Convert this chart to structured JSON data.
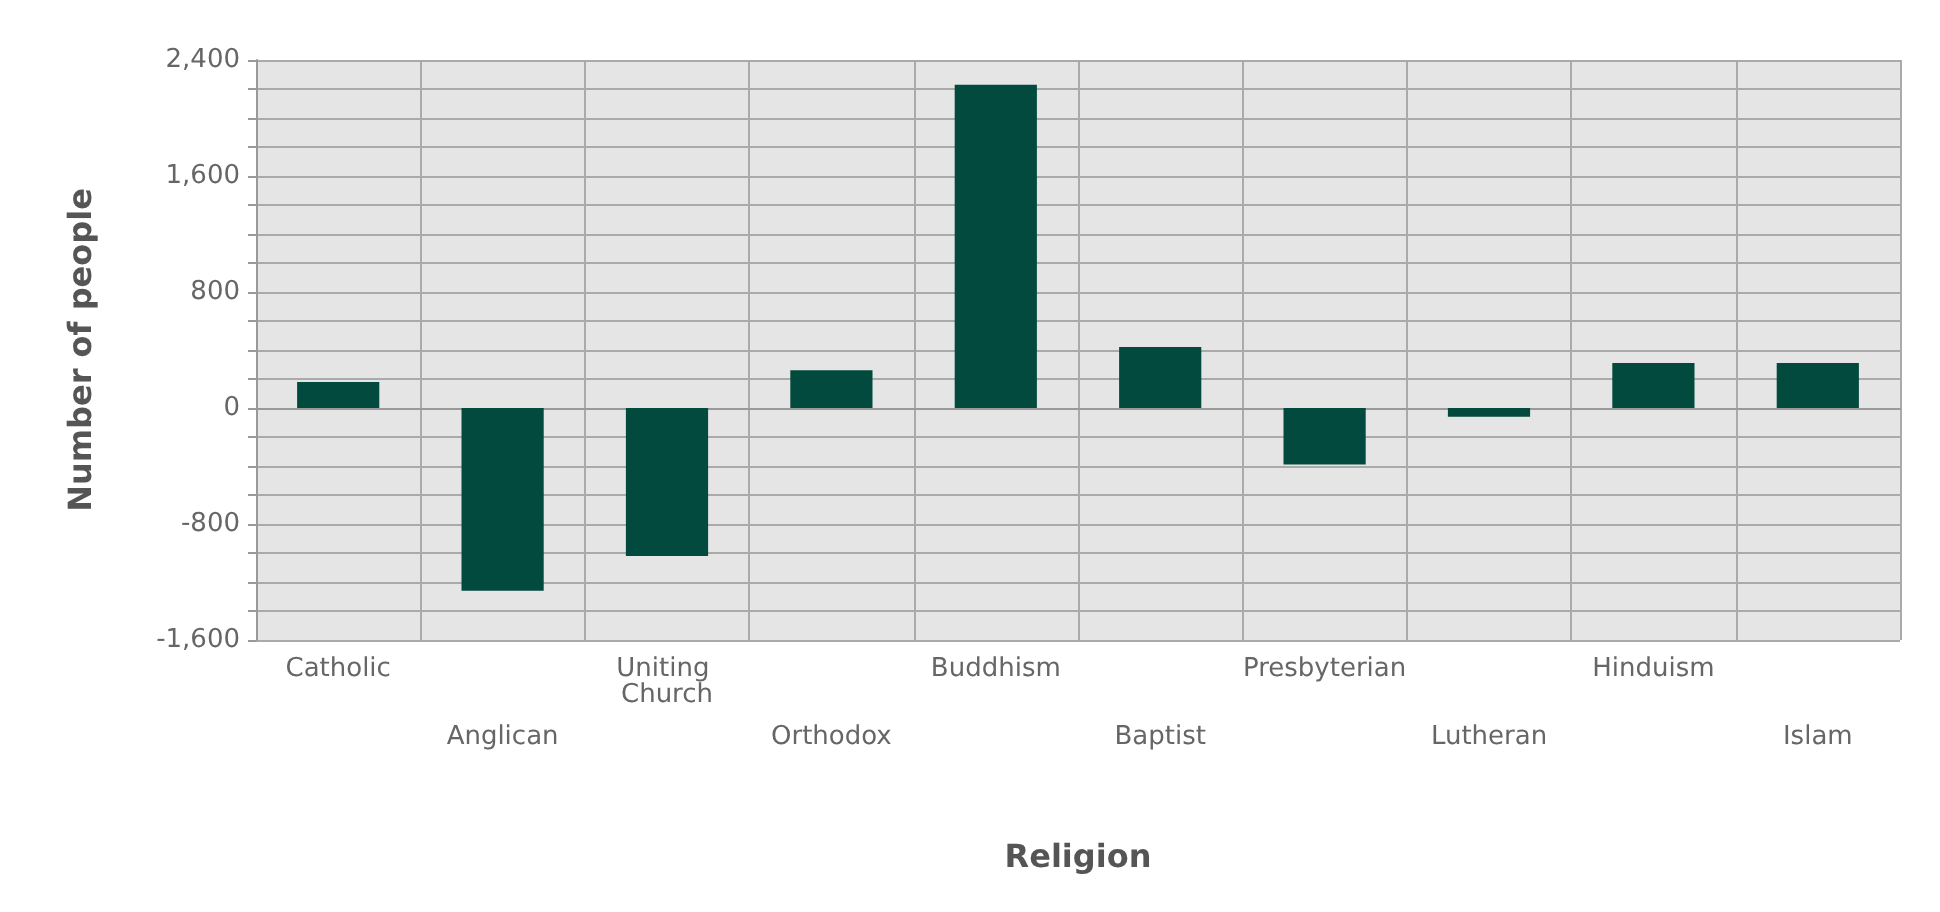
{
  "chart_data": {
    "type": "bar",
    "xlabel": "Religion",
    "ylabel": "Number of people",
    "categories": [
      "Catholic",
      "Anglican",
      "Uniting Church",
      "Orthodox",
      "Buddhism",
      "Baptist",
      "Presbyterian",
      "Lutheran",
      "Hinduism",
      "Islam"
    ],
    "values": [
      180,
      -1260,
      -1020,
      260,
      2230,
      420,
      -390,
      -60,
      310,
      310
    ],
    "color": "#034a3e",
    "ylim": [
      -1600,
      2400
    ],
    "yticks": [
      {
        "value": -1600,
        "label": "-1,600"
      },
      {
        "value": -1400,
        "label": null
      },
      {
        "value": -1200,
        "label": null
      },
      {
        "value": -1000,
        "label": null
      },
      {
        "value": -800,
        "label": "-800"
      },
      {
        "value": -600,
        "label": null
      },
      {
        "value": -400,
        "label": null
      },
      {
        "value": -200,
        "label": null
      },
      {
        "value": 0,
        "label": "0"
      },
      {
        "value": 200,
        "label": null
      },
      {
        "value": 400,
        "label": null
      },
      {
        "value": 600,
        "label": null
      },
      {
        "value": 800,
        "label": "800"
      },
      {
        "value": 1000,
        "label": null
      },
      {
        "value": 1200,
        "label": null
      },
      {
        "value": 1400,
        "label": null
      },
      {
        "value": 1600,
        "label": "1,600"
      },
      {
        "value": 1800,
        "label": null
      },
      {
        "value": 2000,
        "label": null
      },
      {
        "value": 2200,
        "label": null
      },
      {
        "value": 2400,
        "label": "2,400"
      }
    ],
    "grid": true
  }
}
